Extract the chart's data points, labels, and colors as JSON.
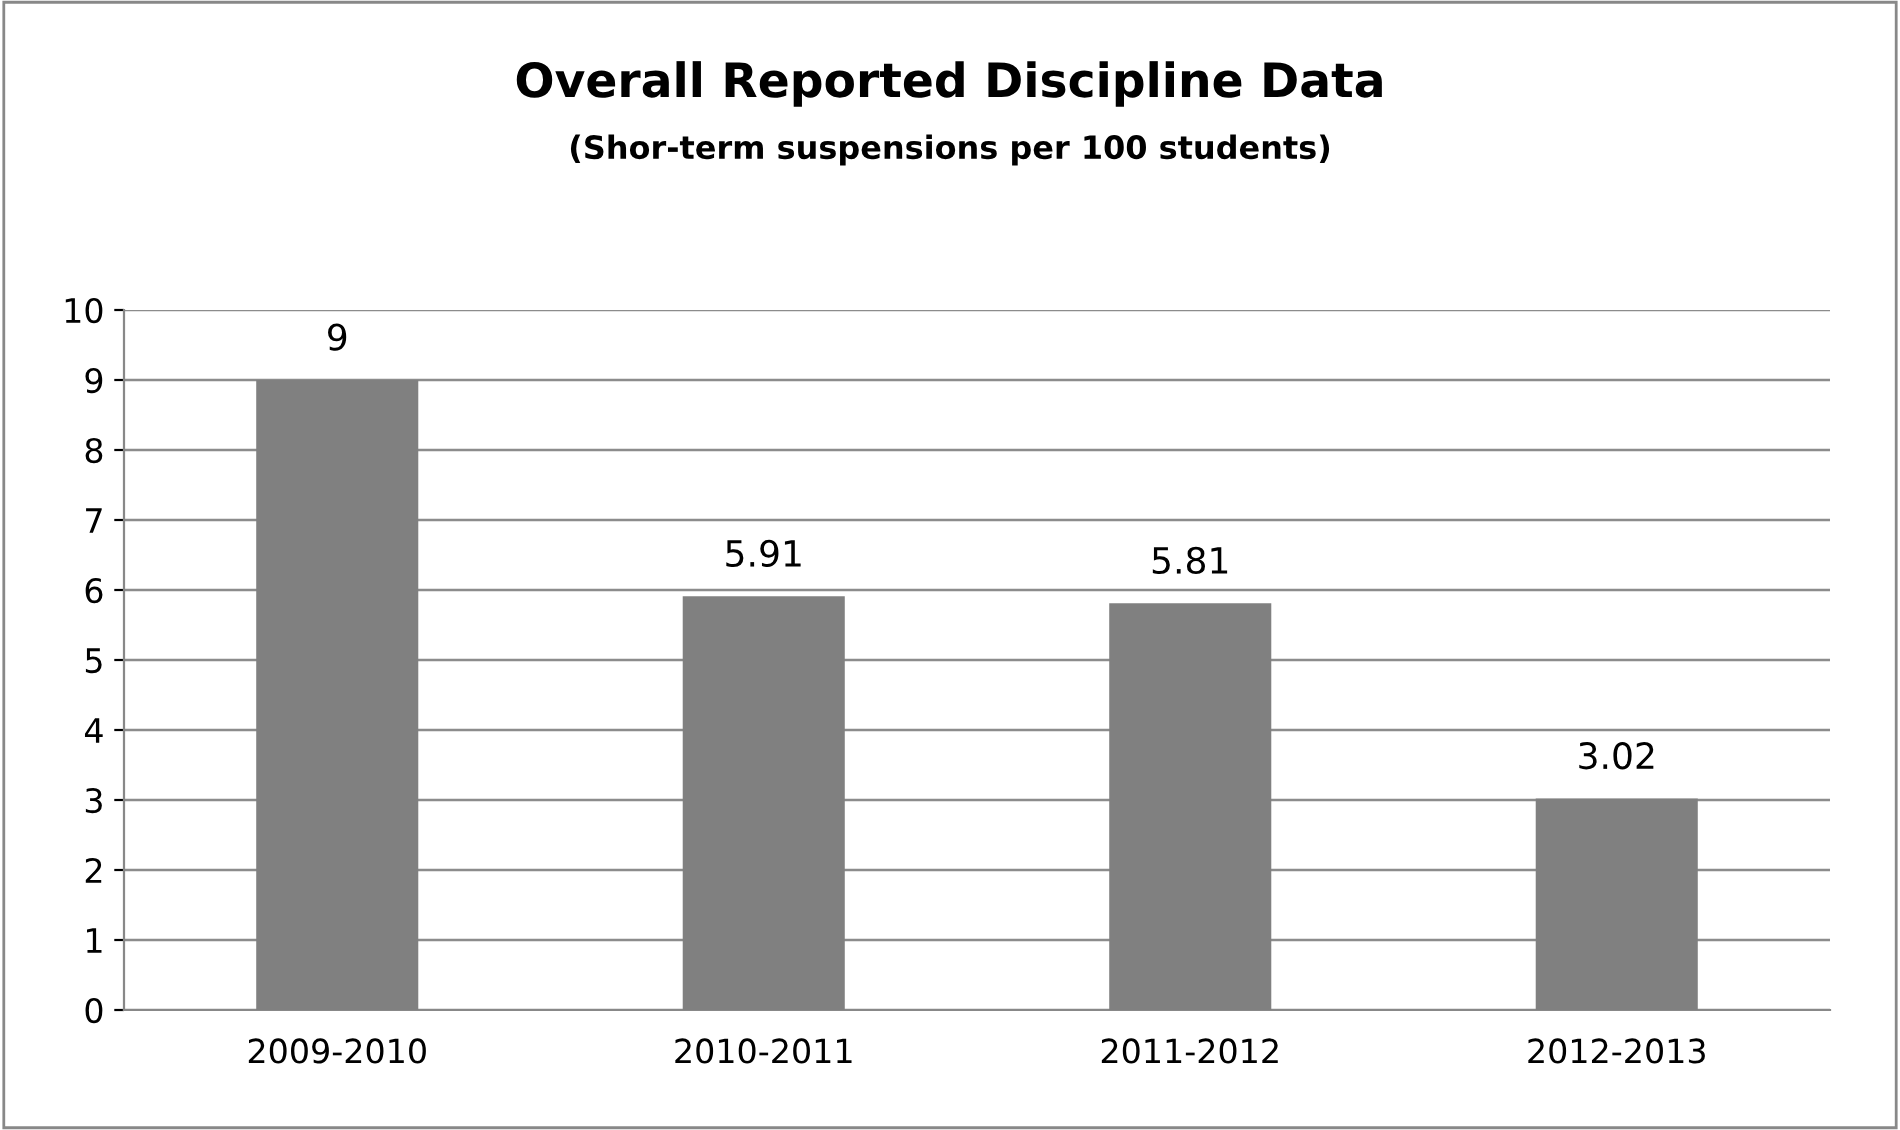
{
  "chart_data": {
    "type": "bar",
    "title": "Overall Reported Discipline Data",
    "subtitle": "(Shor-term suspensions per 100 students)",
    "categories": [
      "2009-2010",
      "2010-2011",
      "2011-2012",
      "2012-2013"
    ],
    "values": [
      9,
      5.91,
      5.81,
      3.02
    ],
    "color": "#808080",
    "ylim": [
      0,
      10
    ],
    "yticks": [
      0,
      1,
      2,
      3,
      4,
      5,
      6,
      7,
      8,
      9,
      10
    ],
    "grid": "y",
    "data_labels": true
  }
}
